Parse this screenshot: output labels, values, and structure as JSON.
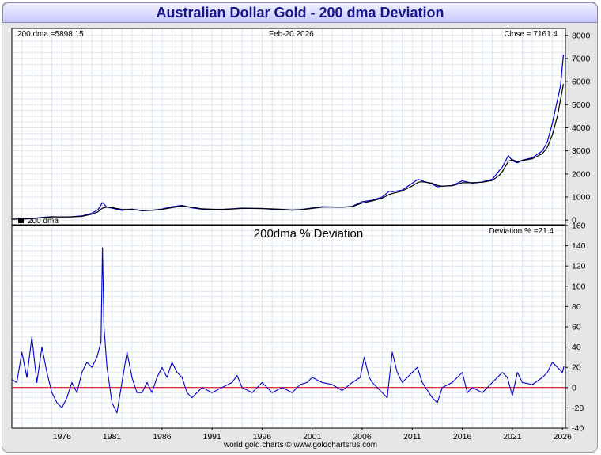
{
  "header": {
    "title": "Australian Dollar Gold - 200 dma Deviation"
  },
  "footer": {
    "credit": "world gold charts © www.goldchartsrus.com"
  },
  "colors": {
    "price": "#0000cc",
    "dma": "#000000",
    "zero_line": "#cc0000",
    "grid": "#dde5ee",
    "panel_bg": "#ffffff"
  },
  "chart_data": [
    {
      "type": "line",
      "panel": "price",
      "annotations": {
        "dma_label": "200 dma =5898.15",
        "date_label": "Feb-20  2026",
        "close_label": "Close = 7161.4",
        "legend_label": "200 dma"
      },
      "ylim": [
        -200,
        8300
      ],
      "yticks": [
        0,
        1000,
        2000,
        3000,
        4000,
        5000,
        6000,
        7000,
        8000
      ],
      "series": [
        {
          "key": "price",
          "x": [
            1971.0,
            1972.0,
            1973.0,
            1974.0,
            1975.0,
            1976.0,
            1977.0,
            1978.0,
            1979.0,
            1979.6,
            1980.05,
            1980.5,
            1981.0,
            1982.0,
            1983.0,
            1984.0,
            1985.0,
            1986.0,
            1987.0,
            1988.0,
            1989.0,
            1990.0,
            1991.0,
            1992.0,
            1993.0,
            1994.0,
            1995.0,
            1996.0,
            1997.0,
            1998.0,
            1999.0,
            2000.0,
            2001.0,
            2002.0,
            2003.0,
            2004.0,
            2005.0,
            2006.0,
            2007.0,
            2008.0,
            2008.7,
            2009.0,
            2010.0,
            2011.0,
            2011.6,
            2012.0,
            2013.0,
            2013.5,
            2014.0,
            2015.0,
            2016.0,
            2017.0,
            2018.0,
            2019.0,
            2019.7,
            2020.0,
            2020.6,
            2021.0,
            2021.5,
            2022.0,
            2023.0,
            2024.0,
            2024.5,
            2025.0,
            2025.5,
            2025.8,
            2026.1
          ],
          "values": [
            45,
            50,
            75,
            120,
            150,
            135,
            145,
            180,
            300,
            450,
            760,
            560,
            520,
            420,
            480,
            400,
            430,
            480,
            580,
            640,
            530,
            470,
            470,
            460,
            490,
            520,
            505,
            505,
            470,
            460,
            425,
            465,
            525,
            580,
            570,
            560,
            600,
            800,
            860,
            1000,
            1250,
            1230,
            1300,
            1600,
            1770,
            1700,
            1560,
            1440,
            1470,
            1500,
            1700,
            1600,
            1650,
            1770,
            2150,
            2300,
            2800,
            2580,
            2480,
            2600,
            2700,
            3000,
            3400,
            4200,
            5200,
            5800,
            7161
          ]
        },
        {
          "key": "dma",
          "x": [
            1971.0,
            1972.0,
            1973.0,
            1974.0,
            1975.0,
            1976.0,
            1977.0,
            1978.0,
            1979.0,
            1979.6,
            1980.05,
            1980.5,
            1981.0,
            1982.0,
            1983.0,
            1984.0,
            1985.0,
            1986.0,
            1987.0,
            1988.0,
            1989.0,
            1990.0,
            1991.0,
            1992.0,
            1993.0,
            1994.0,
            1995.0,
            1996.0,
            1997.0,
            1998.0,
            1999.0,
            2000.0,
            2001.0,
            2002.0,
            2003.0,
            2004.0,
            2005.0,
            2006.0,
            2007.0,
            2008.0,
            2008.7,
            2009.0,
            2010.0,
            2011.0,
            2011.6,
            2012.0,
            2013.0,
            2013.5,
            2014.0,
            2015.0,
            2016.0,
            2017.0,
            2018.0,
            2019.0,
            2019.7,
            2020.0,
            2020.6,
            2021.0,
            2021.5,
            2022.0,
            2023.0,
            2024.0,
            2024.5,
            2025.0,
            2025.5,
            2025.8,
            2026.1
          ],
          "values": [
            40,
            45,
            62,
            100,
            138,
            140,
            140,
            165,
            255,
            360,
            520,
            560,
            540,
            460,
            460,
            420,
            420,
            460,
            540,
            610,
            560,
            490,
            470,
            465,
            480,
            505,
            505,
            500,
            485,
            465,
            440,
            455,
            505,
            560,
            565,
            560,
            585,
            740,
            830,
            950,
            1110,
            1150,
            1260,
            1480,
            1640,
            1660,
            1600,
            1500,
            1470,
            1490,
            1620,
            1620,
            1640,
            1720,
            1950,
            2100,
            2550,
            2620,
            2520,
            2580,
            2660,
            2880,
            3160,
            3700,
            4500,
            5200,
            5898
          ]
        }
      ]
    },
    {
      "type": "line",
      "panel": "deviation",
      "title": "200dma  %  Deviation",
      "annotations": {
        "deviation_label": "Deviation % =21.4"
      },
      "ylim": [
        -40,
        160
      ],
      "yticks": [
        -40,
        -20,
        0,
        20,
        40,
        60,
        80,
        100,
        120,
        140,
        160
      ],
      "xlim": [
        1971.0,
        2026.3
      ],
      "xticks": [
        1976,
        1981,
        1986,
        1991,
        1996,
        2001,
        2006,
        2011,
        2016,
        2021,
        2026
      ],
      "series": [
        {
          "key": "deviation",
          "x": [
            1971.0,
            1971.5,
            1972.0,
            1972.5,
            1973.0,
            1973.5,
            1974.0,
            1974.5,
            1975.0,
            1975.5,
            1976.0,
            1976.5,
            1977.0,
            1977.5,
            1978.0,
            1978.5,
            1979.0,
            1979.5,
            1979.9,
            1980.05,
            1980.2,
            1980.5,
            1981.0,
            1981.5,
            1982.0,
            1982.5,
            1983.0,
            1983.5,
            1984.0,
            1984.5,
            1985.0,
            1985.5,
            1986.0,
            1986.5,
            1987.0,
            1987.5,
            1988.0,
            1988.5,
            1989.0,
            1989.5,
            1990.0,
            1991.0,
            1992.0,
            1993.0,
            1993.5,
            1994.0,
            1995.0,
            1996.0,
            1997.0,
            1998.0,
            1999.0,
            1999.8,
            2000.5,
            2001.0,
            2002.0,
            2003.0,
            2004.0,
            2005.0,
            2005.8,
            2006.2,
            2006.7,
            2007.0,
            2008.0,
            2008.5,
            2009.0,
            2009.5,
            2010.0,
            2011.0,
            2011.5,
            2012.0,
            2013.0,
            2013.5,
            2014.0,
            2015.0,
            2016.0,
            2016.5,
            2017.0,
            2018.0,
            2019.0,
            2019.5,
            2020.0,
            2020.5,
            2021.0,
            2021.5,
            2022.0,
            2023.0,
            2024.0,
            2024.5,
            2025.0,
            2025.5,
            2026.0,
            2026.15
          ],
          "values": [
            8,
            5,
            35,
            10,
            50,
            5,
            40,
            15,
            -5,
            -15,
            -20,
            -10,
            5,
            -5,
            15,
            25,
            20,
            30,
            45,
            138,
            60,
            20,
            -15,
            -25,
            5,
            35,
            10,
            -5,
            -5,
            5,
            -5,
            10,
            20,
            10,
            25,
            15,
            10,
            -5,
            -10,
            -5,
            0,
            -5,
            0,
            5,
            12,
            0,
            -5,
            5,
            -5,
            0,
            -5,
            3,
            5,
            10,
            5,
            3,
            -3,
            5,
            10,
            30,
            10,
            5,
            -5,
            -10,
            35,
            15,
            5,
            15,
            20,
            5,
            -10,
            -15,
            0,
            5,
            15,
            -5,
            0,
            -5,
            5,
            10,
            15,
            10,
            -8,
            15,
            5,
            3,
            10,
            15,
            25,
            20,
            15,
            21
          ]
        }
      ]
    }
  ]
}
